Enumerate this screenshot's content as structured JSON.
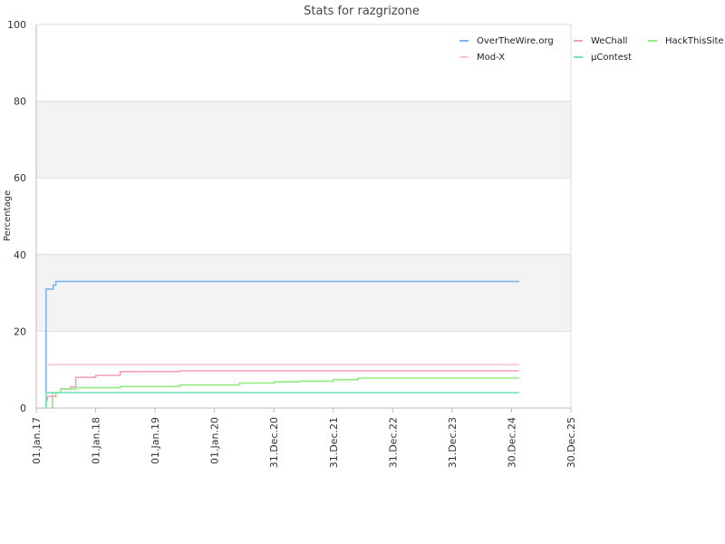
{
  "chart_data": {
    "type": "line",
    "title": "Stats for razgrizone",
    "ylabel": "Percentage",
    "xlabel": "",
    "ylim": [
      0,
      100
    ],
    "y_ticks": [
      0,
      20,
      40,
      60,
      80,
      100
    ],
    "x_range": [
      "2017-01-01",
      "2025-12-30"
    ],
    "x_ticks": [
      {
        "label": "01.Jan.17",
        "date": "2017-01-01"
      },
      {
        "label": "01.Jan.18",
        "date": "2018-01-01"
      },
      {
        "label": "01.Jan.19",
        "date": "2019-01-01"
      },
      {
        "label": "01.Jan.20",
        "date": "2020-01-01"
      },
      {
        "label": "31.Dec.20",
        "date": "2020-12-31"
      },
      {
        "label": "31.Dec.21",
        "date": "2021-12-31"
      },
      {
        "label": "31.Dec.22",
        "date": "2022-12-31"
      },
      {
        "label": "31.Dec.23",
        "date": "2023-12-31"
      },
      {
        "label": "30.Dec.24",
        "date": "2024-12-30"
      },
      {
        "label": "30.Dec.25",
        "date": "2025-12-30"
      }
    ],
    "grid": true,
    "alternating_bands": true,
    "legend_position": "top-right",
    "series": [
      {
        "name": "OverTheWire.org",
        "color": "#7cb5ec",
        "points": [
          [
            "2017-03-01",
            0
          ],
          [
            "2017-03-02",
            31
          ],
          [
            "2017-04-15",
            32
          ],
          [
            "2017-05-01",
            33
          ],
          [
            "2025-02-15",
            33
          ]
        ]
      },
      {
        "name": "WeChall",
        "color": "#f29fbf",
        "points": [
          [
            "2017-03-01",
            0
          ],
          [
            "2017-03-03",
            2
          ],
          [
            "2017-03-10",
            3
          ],
          [
            "2017-04-15",
            3
          ],
          [
            "2017-05-01",
            4
          ],
          [
            "2017-06-01",
            5
          ],
          [
            "2017-08-01",
            5.5
          ],
          [
            "2017-09-01",
            8
          ],
          [
            "2018-01-01",
            8.5
          ],
          [
            "2018-06-01",
            9.5
          ],
          [
            "2019-06-01",
            9.7
          ],
          [
            "2025-02-15",
            9.7
          ]
        ]
      },
      {
        "name": "HackThisSite",
        "color": "#90ed7d",
        "points": [
          [
            "2017-04-01",
            0
          ],
          [
            "2017-04-10",
            4
          ],
          [
            "2017-06-01",
            5
          ],
          [
            "2017-09-01",
            5.3
          ],
          [
            "2018-06-01",
            5.6
          ],
          [
            "2019-06-01",
            6
          ],
          [
            "2020-06-01",
            6.5
          ],
          [
            "2021-01-01",
            6.8
          ],
          [
            "2021-06-01",
            7
          ],
          [
            "2022-01-01",
            7.4
          ],
          [
            "2022-06-01",
            7.8
          ],
          [
            "2025-02-15",
            7.8
          ]
        ]
      },
      {
        "name": "Mod-X",
        "color": "#f7c6d0",
        "points": [
          [
            "2017-03-01",
            11.3
          ],
          [
            "2025-02-15",
            11.3
          ]
        ]
      },
      {
        "name": "µContest",
        "color": "#74e3c0",
        "points": [
          [
            "2017-03-01",
            0
          ],
          [
            "2017-03-02",
            4
          ],
          [
            "2025-02-15",
            4
          ]
        ]
      }
    ]
  }
}
